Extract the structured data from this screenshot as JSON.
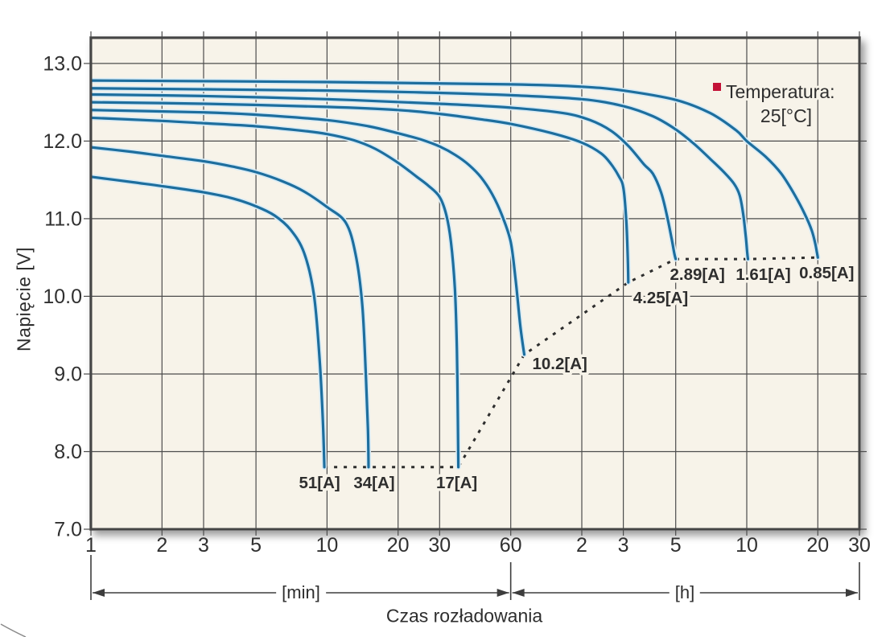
{
  "page": {
    "bg": "#ffffff"
  },
  "colors": {
    "plot_bg": "#f7f3e9",
    "grid": "#4c4c4c",
    "border": "#454545",
    "curve": "#1d6e9e",
    "curve_halo": "#d8ebf5",
    "cutoff_line": "#2e2e2e",
    "text": "#2e2e2e",
    "tick_text": "#303030",
    "legend_marker": "#c31237",
    "arrow": "#3d3d3d",
    "decor": "#8a8a8a"
  },
  "labels": {
    "ylabel": "Napięcie [V]",
    "xlabel": "Czas rozładowania",
    "unit_min": "[min]",
    "unit_h": "[h]"
  },
  "legend": {
    "line1": "Temperatura:",
    "line2": "25[°C]"
  },
  "chart_data": {
    "type": "line",
    "x_scale": "log",
    "x_unit": "minutes",
    "xlim_minutes": [
      1,
      1800
    ],
    "ylim": [
      7.0,
      13.33
    ],
    "grid": true,
    "ylabel": "Napięcie [V]",
    "xlabel": "Czas rozładowania",
    "legend_text": "Temperatura: 25[°C]",
    "y_ticks": [
      {
        "v": 7.0,
        "label": "7.0"
      },
      {
        "v": 8.0,
        "label": "8.0"
      },
      {
        "v": 9.0,
        "label": "9.0"
      },
      {
        "v": 10.0,
        "label": "10.0"
      },
      {
        "v": 11.0,
        "label": "11.0"
      },
      {
        "v": 12.0,
        "label": "12.0"
      },
      {
        "v": 13.0,
        "label": "13.0"
      }
    ],
    "x_ticks": [
      {
        "t": 1,
        "label": "1"
      },
      {
        "t": 2,
        "label": "2"
      },
      {
        "t": 3,
        "label": "3"
      },
      {
        "t": 5,
        "label": "5"
      },
      {
        "t": 10,
        "label": "10"
      },
      {
        "t": 20,
        "label": "20"
      },
      {
        "t": 30,
        "label": "30"
      },
      {
        "t": 60,
        "label": "60"
      },
      {
        "t": 120,
        "label": "2"
      },
      {
        "t": 180,
        "label": "3"
      },
      {
        "t": 300,
        "label": "5"
      },
      {
        "t": 600,
        "label": "10"
      },
      {
        "t": 1200,
        "label": "20"
      },
      {
        "t": 1800,
        "label": "30"
      }
    ],
    "axis_sections": [
      {
        "label": "[min]",
        "from": 1,
        "to": 60
      },
      {
        "label": "[h]",
        "from": 60,
        "to": 1800
      }
    ],
    "series": [
      {
        "name": "51A",
        "current_a": 51,
        "label": "51[A]",
        "label_anchor": "middle",
        "label_offset": [
          -6,
          26
        ],
        "points": [
          [
            1,
            11.54
          ],
          [
            1.5,
            11.47
          ],
          [
            2,
            11.42
          ],
          [
            3,
            11.34
          ],
          [
            4,
            11.26
          ],
          [
            5,
            11.16
          ],
          [
            6,
            11.04
          ],
          [
            7,
            10.86
          ],
          [
            8,
            10.56
          ],
          [
            8.8,
            10.02
          ],
          [
            9.3,
            9.2
          ],
          [
            9.6,
            8.4
          ],
          [
            9.75,
            7.8
          ]
        ]
      },
      {
        "name": "34A",
        "current_a": 34,
        "label": "34[A]",
        "label_anchor": "middle",
        "label_offset": [
          7,
          26
        ],
        "points": [
          [
            1,
            11.92
          ],
          [
            1.5,
            11.86
          ],
          [
            2,
            11.81
          ],
          [
            3,
            11.74
          ],
          [
            4,
            11.67
          ],
          [
            5,
            11.6
          ],
          [
            6.5,
            11.48
          ],
          [
            8,
            11.35
          ],
          [
            10,
            11.15
          ],
          [
            12,
            10.95
          ],
          [
            13.2,
            10.55
          ],
          [
            14.1,
            9.9
          ],
          [
            14.6,
            9.0
          ],
          [
            14.9,
            8.3
          ],
          [
            15,
            7.8
          ]
        ]
      },
      {
        "name": "17A",
        "current_a": 17,
        "label": "17[A]",
        "label_anchor": "middle",
        "label_offset": [
          -2,
          26
        ],
        "points": [
          [
            1,
            12.3
          ],
          [
            2,
            12.26
          ],
          [
            3,
            12.23
          ],
          [
            5,
            12.19
          ],
          [
            8,
            12.13
          ],
          [
            10,
            12.09
          ],
          [
            13,
            12.01
          ],
          [
            16,
            11.9
          ],
          [
            20,
            11.72
          ],
          [
            24,
            11.54
          ],
          [
            27,
            11.42
          ],
          [
            30,
            11.28
          ],
          [
            32,
            11.05
          ],
          [
            33.5,
            10.7
          ],
          [
            34.8,
            10.1
          ],
          [
            35.5,
            9.3
          ],
          [
            35.85,
            8.4
          ],
          [
            36,
            7.8
          ]
        ]
      },
      {
        "name": "10.2A",
        "current_a": 10.2,
        "label": "10.2[A]",
        "label_anchor": "start",
        "label_offset": [
          10,
          18
        ],
        "points": [
          [
            1,
            12.4
          ],
          [
            3,
            12.37
          ],
          [
            5,
            12.34
          ],
          [
            10,
            12.27
          ],
          [
            15,
            12.19
          ],
          [
            20,
            12.1
          ],
          [
            25,
            12.02
          ],
          [
            30,
            11.93
          ],
          [
            35,
            11.82
          ],
          [
            40,
            11.69
          ],
          [
            45,
            11.53
          ],
          [
            50,
            11.32
          ],
          [
            55,
            11.05
          ],
          [
            60,
            10.7
          ],
          [
            63,
            10.2
          ],
          [
            66,
            9.6
          ],
          [
            68.5,
            9.25
          ]
        ]
      },
      {
        "name": "4.25A",
        "current_a": 4.25,
        "label": "4.25[A]",
        "label_anchor": "start",
        "label_offset": [
          6,
          26
        ],
        "points": [
          [
            1,
            12.5
          ],
          [
            3,
            12.48
          ],
          [
            10,
            12.44
          ],
          [
            20,
            12.4
          ],
          [
            30,
            12.35
          ],
          [
            45,
            12.28
          ],
          [
            60,
            12.22
          ],
          [
            90,
            12.1
          ],
          [
            120,
            11.98
          ],
          [
            145,
            11.84
          ],
          [
            160,
            11.7
          ],
          [
            172,
            11.55
          ],
          [
            180,
            11.4
          ],
          [
            185,
            11.0
          ],
          [
            187.5,
            10.6
          ],
          [
            189,
            10.18
          ]
        ]
      },
      {
        "name": "2.89A",
        "current_a": 2.89,
        "label": "2.89[A]",
        "label_anchor": "middle",
        "label_offset": [
          27,
          26
        ],
        "points": [
          [
            1,
            12.6
          ],
          [
            3,
            12.58
          ],
          [
            10,
            12.54
          ],
          [
            30,
            12.48
          ],
          [
            60,
            12.43
          ],
          [
            100,
            12.36
          ],
          [
            130,
            12.27
          ],
          [
            160,
            12.13
          ],
          [
            190,
            11.93
          ],
          [
            220,
            11.7
          ],
          [
            240,
            11.58
          ],
          [
            260,
            11.34
          ],
          [
            275,
            11.05
          ],
          [
            288,
            10.75
          ],
          [
            296,
            10.55
          ],
          [
            300,
            10.48
          ]
        ]
      },
      {
        "name": "1.61A",
        "current_a": 1.61,
        "label": "1.61[A]",
        "label_anchor": "middle",
        "label_offset": [
          19,
          26
        ],
        "points": [
          [
            1,
            12.68
          ],
          [
            10,
            12.65
          ],
          [
            30,
            12.62
          ],
          [
            60,
            12.59
          ],
          [
            120,
            12.54
          ],
          [
            180,
            12.45
          ],
          [
            240,
            12.32
          ],
          [
            300,
            12.15
          ],
          [
            360,
            11.96
          ],
          [
            420,
            11.77
          ],
          [
            480,
            11.6
          ],
          [
            530,
            11.45
          ],
          [
            560,
            11.3
          ],
          [
            580,
            11.05
          ],
          [
            595,
            10.75
          ],
          [
            603,
            10.55
          ],
          [
            607,
            10.48
          ]
        ]
      },
      {
        "name": "0.85A",
        "current_a": 0.85,
        "label": "0.85[A]",
        "label_anchor": "middle",
        "label_offset": [
          11,
          26
        ],
        "points": [
          [
            1,
            12.78
          ],
          [
            10,
            12.76
          ],
          [
            60,
            12.73
          ],
          [
            120,
            12.7
          ],
          [
            180,
            12.65
          ],
          [
            300,
            12.53
          ],
          [
            420,
            12.36
          ],
          [
            540,
            12.14
          ],
          [
            600,
            12.0
          ],
          [
            720,
            11.8
          ],
          [
            840,
            11.58
          ],
          [
            960,
            11.3
          ],
          [
            1060,
            11.05
          ],
          [
            1130,
            10.85
          ],
          [
            1170,
            10.68
          ],
          [
            1190,
            10.56
          ],
          [
            1200,
            10.5
          ]
        ]
      }
    ],
    "cutoff_line": {
      "points": [
        [
          9.75,
          7.8
        ],
        [
          15,
          7.8
        ],
        [
          36,
          7.8
        ],
        [
          68.5,
          9.25
        ],
        [
          189,
          10.18
        ],
        [
          300,
          10.48
        ],
        [
          607,
          10.48
        ],
        [
          1200,
          10.5
        ]
      ]
    }
  }
}
